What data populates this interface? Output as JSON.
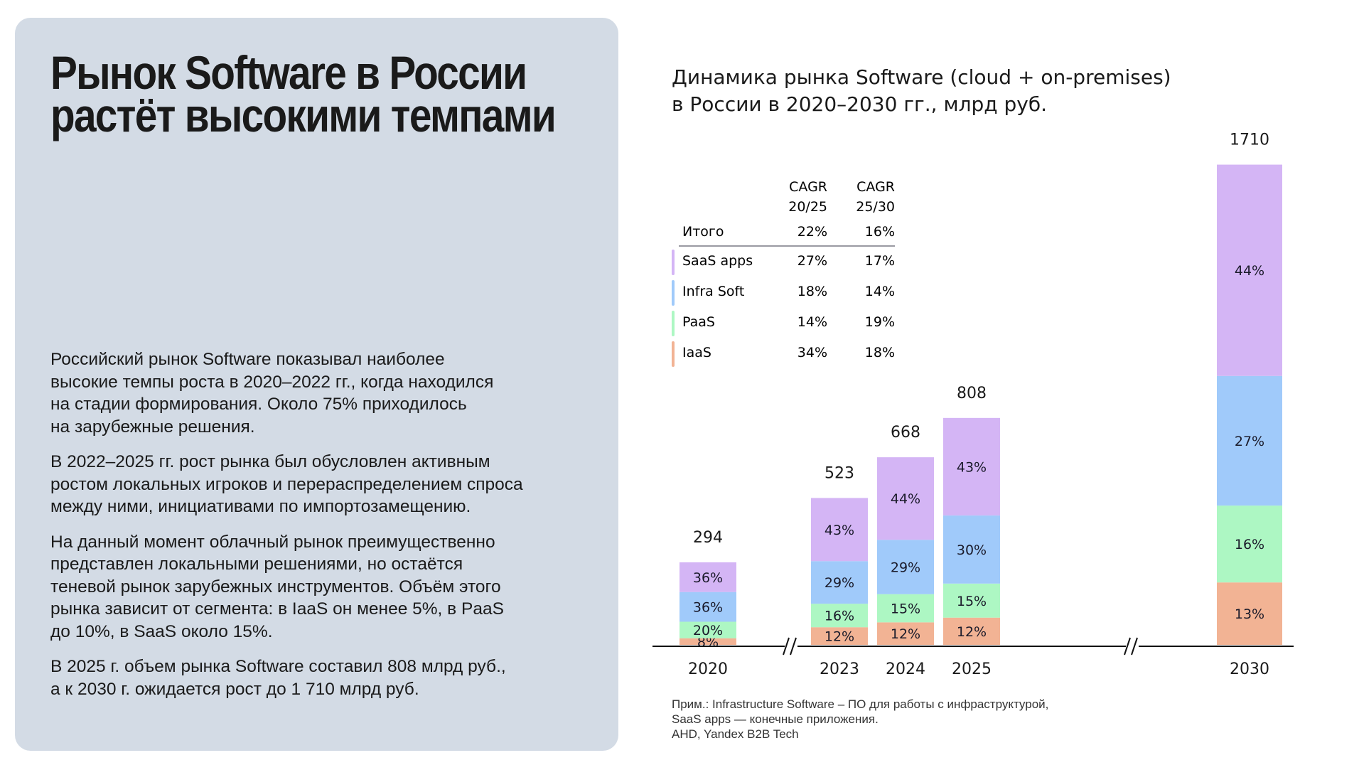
{
  "left_panel": {
    "title_line1": "Рынок Software в России",
    "title_line2": "растёт высокими темпами",
    "paragraphs": [
      "Российский рынок Software показывал наиболее\nвысокие темпы роста в 2020–2022 гг., когда находился\nна стадии формирования. Около 75% приходилось\nна зарубежные решения.",
      "В 2022–2025 гг. рост рынка был обусловлен активным\nростом локальных игроков и перераспределением спроса\nмежду ними, инициативами по импортозамещению.",
      "На данный момент облачный рынок преимущественно\nпредставлен локальными решениями, но остаётся\nтеневой рынок зарубежных инструментов. Объём этого\nрынка зависит от сегмента: в IaaS он менее 5%, в PaaS\nдо 10%, в SaaS около 15%.",
      "В 2025 г. объем рынка Software составил 808 млрд руб.,\nа к 2030 г. ожидается рост до 1 710 млрд руб."
    ]
  },
  "footnote": "Прим.: Infrastructure Software – ПО для работы с инфраструктурой,\nSaaS apps — конечные приложения.\nAHD, Yandex B2B Tech",
  "chart_data": {
    "type": "bar",
    "stacked": true,
    "title": "Динамика рынка Software (cloud + on-premises)\nв России в 2020–2030 гг., млрд руб.",
    "categories": [
      "2020",
      "2023",
      "2024",
      "2025",
      "2030"
    ],
    "totals": [
      294,
      523,
      668,
      808,
      1710
    ],
    "axis_breaks_after": [
      "2020",
      "2025"
    ],
    "series": [
      {
        "name": "IaaS",
        "color": "#f2b394",
        "share_pct": [
          8,
          12,
          12,
          12,
          13
        ]
      },
      {
        "name": "PaaS",
        "color": "#adf7c3",
        "share_pct": [
          20,
          16,
          15,
          15,
          16
        ]
      },
      {
        "name": "Infra Soft",
        "color": "#a0cafa",
        "share_pct": [
          36,
          29,
          29,
          30,
          27
        ]
      },
      {
        "name": "SaaS apps",
        "color": "#d4b5f5",
        "share_pct": [
          36,
          43,
          44,
          43,
          44
        ]
      }
    ],
    "cagr_table": {
      "headers": [
        "CAGR\n20/25",
        "CAGR\n25/30"
      ],
      "total_row": {
        "label": "Итого",
        "values": [
          "22%",
          "16%"
        ]
      },
      "rows": [
        {
          "label": "SaaS apps",
          "color": "#d4b5f5",
          "values": [
            "27%",
            "17%"
          ]
        },
        {
          "label": "Infra Soft",
          "color": "#a0cafa",
          "values": [
            "18%",
            "14%"
          ]
        },
        {
          "label": "PaaS",
          "color": "#adf7c3",
          "values": [
            "14%",
            "19%"
          ]
        },
        {
          "label": "IaaS",
          "color": "#f2b394",
          "values": [
            "34%",
            "18%"
          ]
        }
      ]
    }
  }
}
